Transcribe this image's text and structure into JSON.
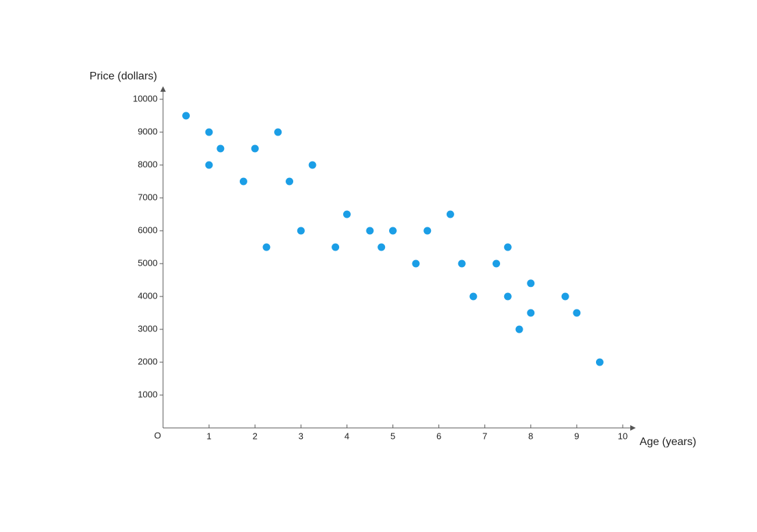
{
  "chart_data": {
    "type": "scatter",
    "x_label": "Age (years)",
    "y_label": "Price (dollars)",
    "origin_label": "O",
    "color": "#1b9ee6",
    "xlim": [
      0,
      10
    ],
    "ylim": [
      0,
      10000
    ],
    "xticks": [
      1,
      2,
      3,
      4,
      5,
      6,
      7,
      8,
      9,
      10
    ],
    "yticks": [
      1000,
      2000,
      3000,
      4000,
      5000,
      6000,
      7000,
      8000,
      9000,
      10000
    ],
    "x": [
      0.5,
      1,
      1,
      1.25,
      1.75,
      2,
      2.25,
      2.5,
      2.75,
      3,
      3.25,
      3.75,
      4,
      4.5,
      4.75,
      5,
      5.5,
      5.75,
      6.25,
      6.5,
      6.75,
      7.25,
      7.5,
      7.5,
      7.75,
      8,
      8,
      8.75,
      9,
      9.5
    ],
    "values": [
      9500,
      9000,
      8000,
      8500,
      7500,
      8500,
      5500,
      9000,
      7500,
      6000,
      8000,
      5500,
      6500,
      6000,
      5500,
      6000,
      5000,
      6000,
      6500,
      5000,
      4000,
      5000,
      5500,
      4000,
      3000,
      4400,
      3500,
      4000,
      3500,
      2000
    ]
  }
}
